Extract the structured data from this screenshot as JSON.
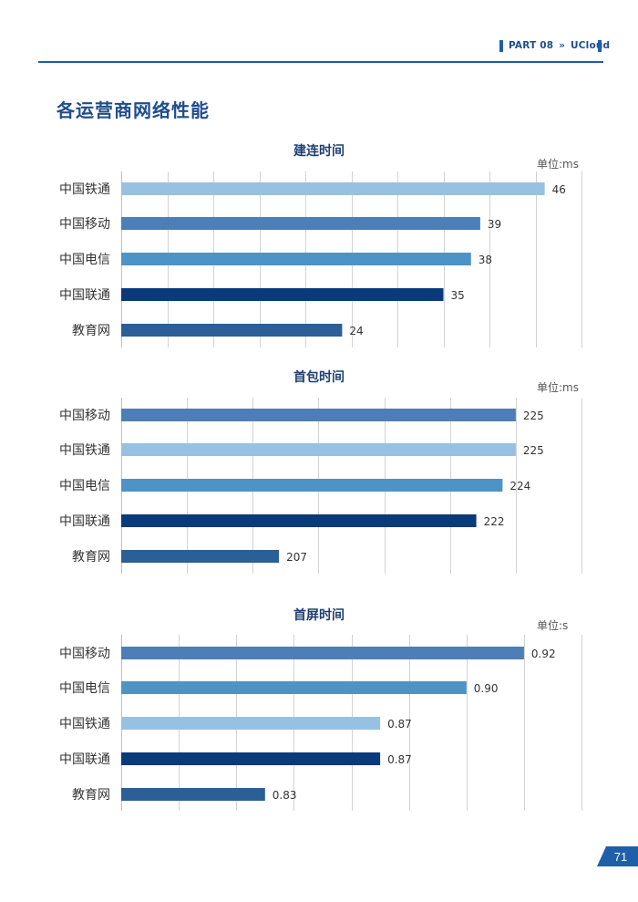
{
  "header": {
    "part": "PART 08",
    "separator": "»",
    "section": "UCloud"
  },
  "page_title": "各运营商网络性能",
  "page_number": "71",
  "colors": {
    "brand": "#1f5fa8",
    "title": "#1f4e8c",
    "grid": "#d0d0d0",
    "bars": {
      "light": "#97c1e2",
      "mid": "#4d7fb6",
      "steel": "#4e93c6",
      "navy": "#0b3a7a",
      "deep": "#2b5f96"
    }
  },
  "chart_data": [
    {
      "type": "bar",
      "orientation": "horizontal",
      "title": "建连时间",
      "unit": "单位:ms",
      "categories": [
        "中国铁通",
        "中国移动",
        "中国电信",
        "中国联通",
        "教育网"
      ],
      "values": [
        46,
        39,
        38,
        35,
        24
      ],
      "labels": [
        "46",
        "39",
        "38",
        "35",
        "24"
      ],
      "colors": [
        "#97c1e2",
        "#4d7fb6",
        "#4e93c6",
        "#0b3a7a",
        "#2b5f96"
      ],
      "xlim": [
        0,
        50
      ],
      "grid_step": 5,
      "grid": true
    },
    {
      "type": "bar",
      "orientation": "horizontal",
      "title": "首包时间",
      "unit": "单位:ms",
      "categories": [
        "中国移动",
        "中国铁通",
        "中国电信",
        "中国联通",
        "教育网"
      ],
      "values": [
        225,
        225,
        224,
        222,
        207
      ],
      "labels": [
        "225",
        "225",
        "224",
        "222",
        "207"
      ],
      "colors": [
        "#4d7fb6",
        "#97c1e2",
        "#4e93c6",
        "#0b3a7a",
        "#2b5f96"
      ],
      "xlim": [
        195,
        230
      ],
      "grid_step": 5,
      "grid": true
    },
    {
      "type": "bar",
      "orientation": "horizontal",
      "title": "首屏时间",
      "unit": "单位:s",
      "categories": [
        "中国移动",
        "中国电信",
        "中国铁通",
        "中国联通",
        "教育网"
      ],
      "values": [
        0.92,
        0.9,
        0.87,
        0.87,
        0.83
      ],
      "labels": [
        "0.92",
        "0.90",
        "0.87",
        "0.87",
        "0.83"
      ],
      "colors": [
        "#4d7fb6",
        "#4e93c6",
        "#97c1e2",
        "#0b3a7a",
        "#2b5f96"
      ],
      "xlim": [
        0.78,
        0.94
      ],
      "grid_step": 0.02,
      "grid": true
    }
  ]
}
